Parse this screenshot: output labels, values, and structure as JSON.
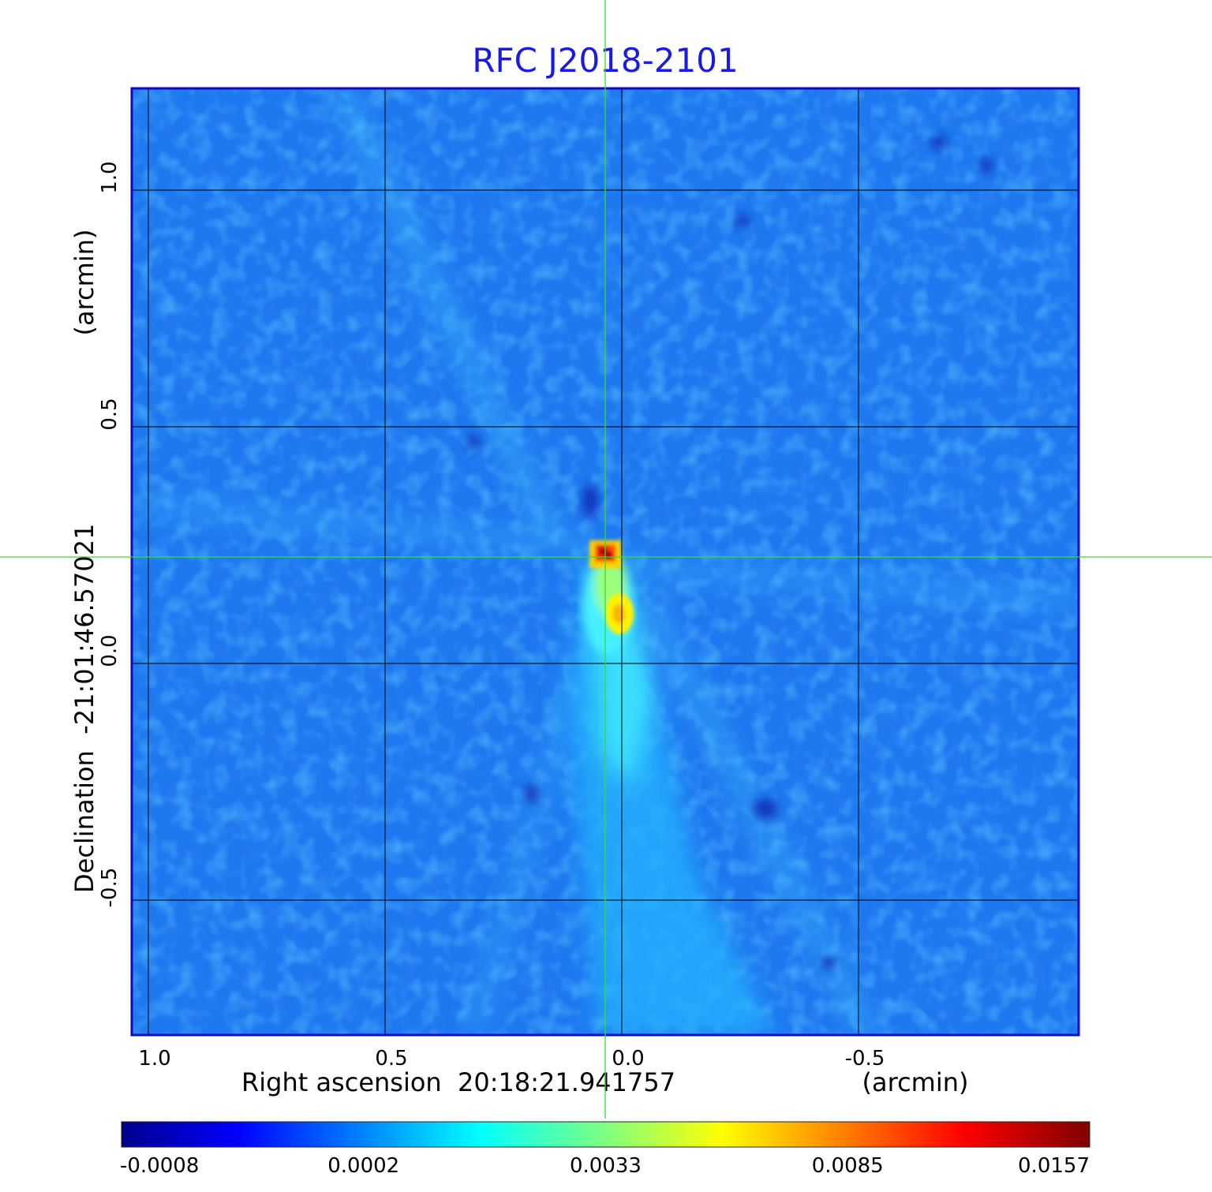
{
  "chart_data": {
    "type": "heatmap",
    "title": "RFC J2018-2101",
    "xlabel": "Right ascension  20:18:21.941757",
    "xunit": "(arcmin)",
    "ylabel": "Declination  -21:01:46.57021",
    "yunit": "(arcmin)",
    "x_ticks": [
      "1.0",
      "0.5",
      "0.0",
      "-0.5"
    ],
    "x_tick_values": [
      1.0,
      0.5,
      0.0,
      -0.5
    ],
    "y_ticks": [
      "1.0",
      "0.5",
      "0.0",
      "-0.5"
    ],
    "y_tick_values": [
      1.0,
      0.5,
      0.0,
      -0.5
    ],
    "xlim": [
      1.035,
      -0.965
    ],
    "ylim": [
      -0.785,
      1.215
    ],
    "grid": true,
    "crosshair": {
      "x": 0.035,
      "y": 0.225
    },
    "colorbar": {
      "ticks": [
        "-0.0008",
        "0.0002",
        "0.0033",
        "0.0085",
        "0.0157"
      ],
      "tick_values": [
        -0.0008,
        0.0002,
        0.0033,
        0.0085,
        0.0157
      ],
      "colormap": "jet",
      "colors": [
        "#00008f",
        "#0000ff",
        "#00ffff",
        "#ffff00",
        "#ff0000",
        "#800000"
      ]
    },
    "background_level": 0.0,
    "peak": {
      "x": 0.035,
      "y": 0.225,
      "value": 0.0157
    },
    "secondary_peak": {
      "x": 0.015,
      "y": 0.1,
      "value": 0.0085
    }
  },
  "colors": {
    "title": "#1a1ae6",
    "frame": "#0a0ac8",
    "grid": "#000000",
    "crosshair": "#33dd33"
  }
}
